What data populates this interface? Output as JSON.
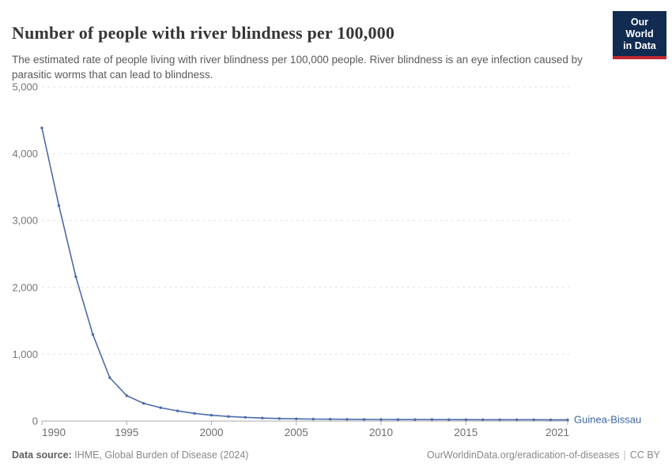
{
  "header": {
    "title": "Number of people with river blindness per 100,000",
    "subtitle": "The estimated rate of people living with river blindness per 100,000 people. River blindness is an eye infection caused by parasitic worms that can lead to blindness.",
    "logo": {
      "line1": "Our World",
      "line2": "in Data"
    }
  },
  "chart_data": {
    "type": "line",
    "title": "Number of people with river blindness per 100,000",
    "xlabel": "",
    "ylabel": "",
    "grid": "horizontal-dashed",
    "legend_position": "end-of-line",
    "xlim": [
      1990,
      2021
    ],
    "ylim": [
      0,
      5000
    ],
    "x": [
      1990,
      1991,
      1992,
      1993,
      1994,
      1995,
      1996,
      1997,
      1998,
      1999,
      2000,
      2001,
      2002,
      2003,
      2004,
      2005,
      2006,
      2007,
      2008,
      2009,
      2010,
      2011,
      2012,
      2013,
      2014,
      2015,
      2016,
      2017,
      2018,
      2019,
      2020,
      2021
    ],
    "series": [
      {
        "name": "Guinea-Bissau",
        "color": "#4c6ba8",
        "label_color": "#3d66a3",
        "values": [
          4385,
          3225,
          2160,
          1295,
          650,
          380,
          265,
          200,
          152,
          115,
          88,
          68,
          55,
          45,
          38,
          33,
          30,
          28,
          26,
          25,
          24,
          23,
          22,
          22,
          21,
          21,
          20,
          20,
          20,
          20,
          19,
          19
        ]
      }
    ],
    "yticks": [
      {
        "v": 0,
        "label": "0"
      },
      {
        "v": 1000,
        "label": "1,000"
      },
      {
        "v": 2000,
        "label": "2,000"
      },
      {
        "v": 3000,
        "label": "3,000"
      },
      {
        "v": 4000,
        "label": "4,000"
      },
      {
        "v": 5000,
        "label": "5,000"
      }
    ],
    "xticks": [
      {
        "v": 1990,
        "label": "1990"
      },
      {
        "v": 1995,
        "label": "1995"
      },
      {
        "v": 2000,
        "label": "2000"
      },
      {
        "v": 2005,
        "label": "2005"
      },
      {
        "v": 2010,
        "label": "2010"
      },
      {
        "v": 2015,
        "label": "2015"
      },
      {
        "v": 2021,
        "label": "2021"
      }
    ]
  },
  "footer": {
    "source_label": "Data source:",
    "source_text": "IHME, Global Burden of Disease (2024)",
    "url_text": "OurWorldinData.org/eradication-of-diseases",
    "divider": "|",
    "license_text": "CC BY"
  }
}
